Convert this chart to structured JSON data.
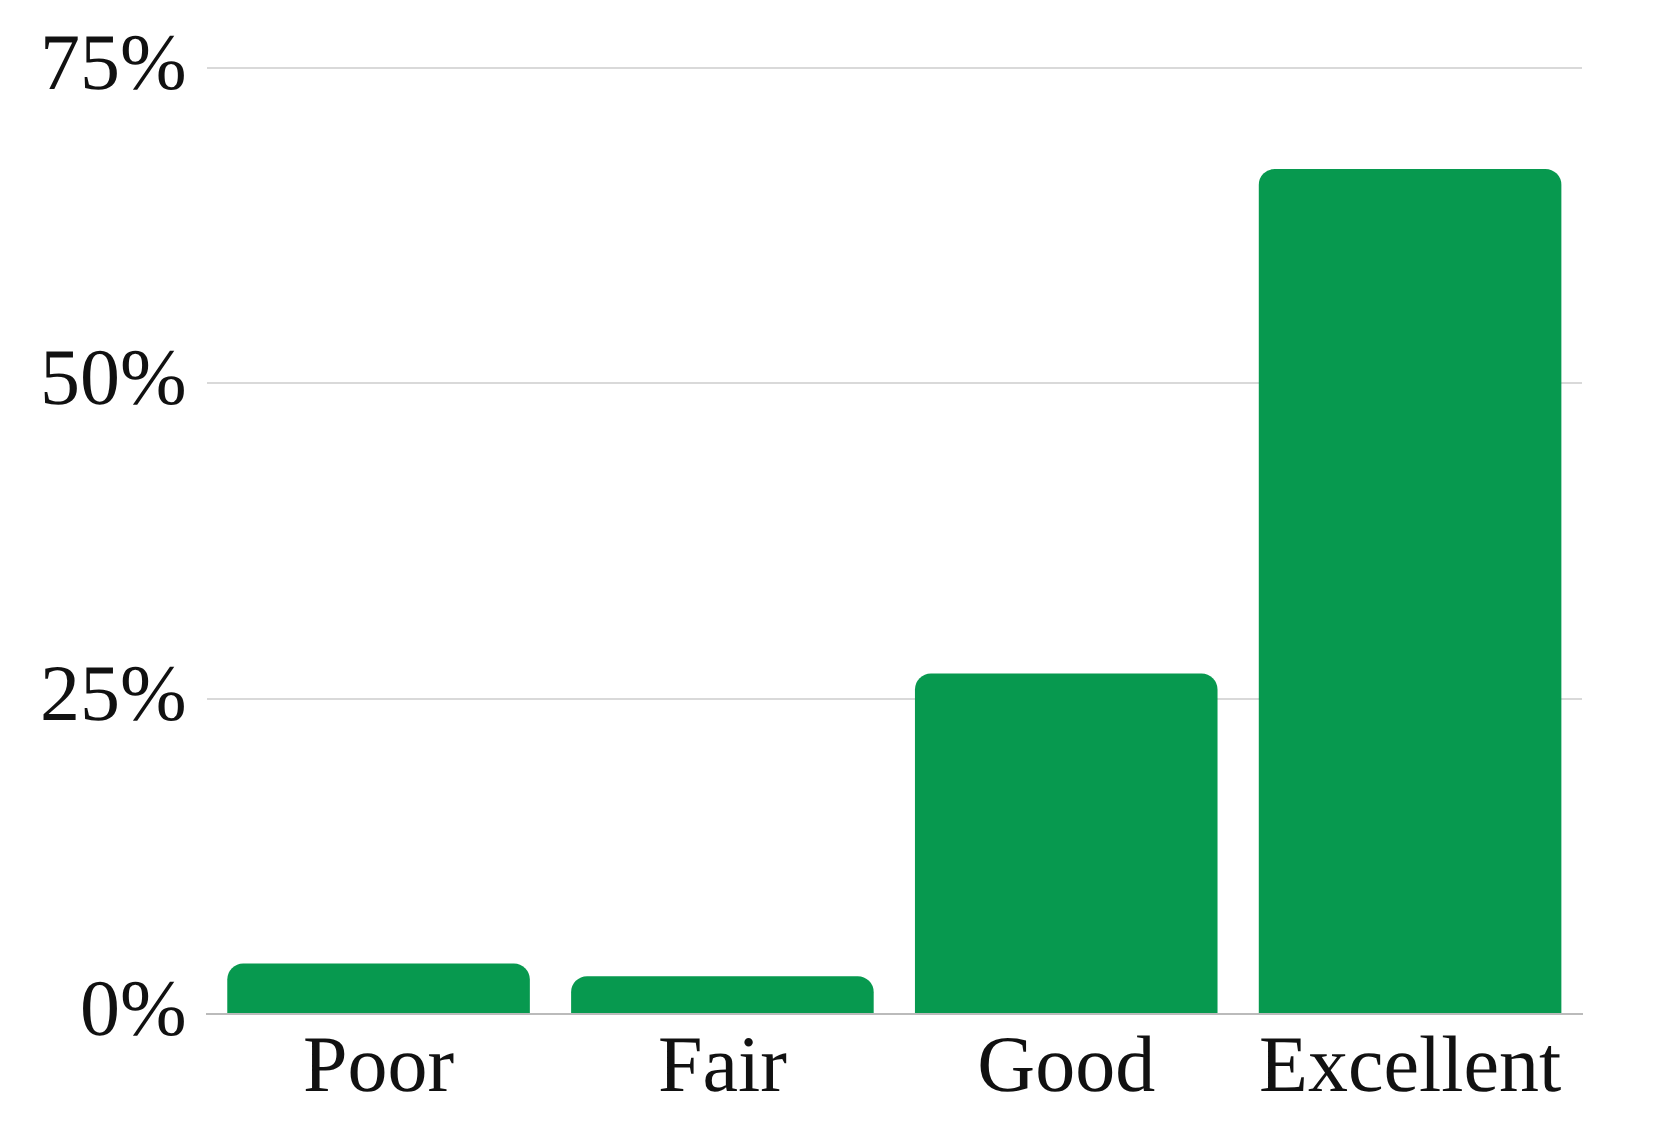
{
  "chart_data": {
    "type": "bar",
    "categories": [
      "Poor",
      "Fair",
      "Good",
      "Excellent"
    ],
    "values": [
      4,
      3,
      27,
      67
    ],
    "color": "#07994f",
    "ylim": [
      0,
      75
    ],
    "yticks": [
      {
        "value": 0,
        "label": "0%"
      },
      {
        "value": 25,
        "label": "25%"
      },
      {
        "value": 50,
        "label": "50%"
      },
      {
        "value": 75,
        "label": "75%"
      }
    ],
    "grid": "y"
  }
}
